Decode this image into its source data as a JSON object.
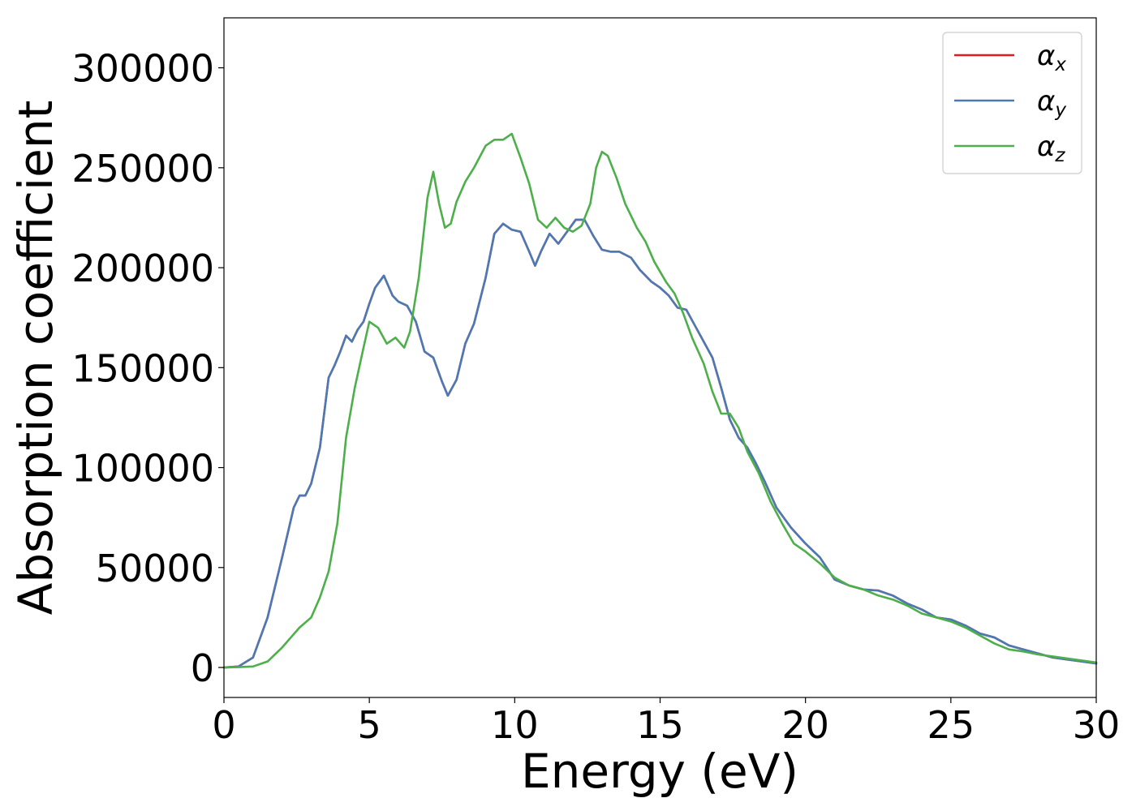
{
  "chart_data": {
    "type": "line",
    "title": "",
    "xlabel": "Energy (eV)",
    "ylabel": "Absorption coefficient",
    "xlim": [
      0,
      30
    ],
    "ylim": [
      -15000,
      325000
    ],
    "xticks": [
      0,
      5,
      10,
      15,
      20,
      25,
      30
    ],
    "yticks": [
      0,
      50000,
      100000,
      150000,
      200000,
      250000,
      300000
    ],
    "xtick_labels": [
      "0",
      "5",
      "10",
      "15",
      "20",
      "25",
      "30"
    ],
    "ytick_labels": [
      "0",
      "50000",
      "100000",
      "150000",
      "200000",
      "250000",
      "300000"
    ],
    "grid": false,
    "legend_position": "top-right",
    "series": [
      {
        "name": "αx",
        "label_base": "α",
        "label_sub": "x",
        "color": "#e41a1c",
        "x": [
          0,
          0.5,
          1.0,
          1.5,
          2.0,
          2.4,
          2.6,
          2.8,
          3.0,
          3.3,
          3.6,
          3.8,
          4.0,
          4.2,
          4.4,
          4.6,
          4.8,
          5.0,
          5.2,
          5.5,
          5.8,
          6.0,
          6.3,
          6.6,
          6.9,
          7.2,
          7.5,
          7.7,
          8.0,
          8.3,
          8.6,
          9.0,
          9.3,
          9.6,
          9.9,
          10.2,
          10.5,
          10.7,
          10.9,
          11.2,
          11.5,
          11.8,
          12.1,
          12.4,
          12.7,
          13.0,
          13.3,
          13.6,
          14.0,
          14.3,
          14.7,
          15.0,
          15.3,
          15.6,
          15.9,
          16.2,
          16.5,
          16.8,
          17.1,
          17.4,
          17.7,
          18.0,
          18.3,
          18.6,
          19.0,
          19.5,
          20.0,
          20.5,
          21.0,
          21.5,
          22.0,
          22.5,
          23.0,
          23.5,
          24.0,
          24.5,
          25.0,
          25.5,
          26.0,
          26.5,
          27.0,
          27.5,
          28.0,
          28.5,
          29.0,
          29.5,
          30.0
        ],
        "values": [
          0,
          500,
          5000,
          25000,
          55000,
          80000,
          86000,
          86000,
          92000,
          110000,
          145000,
          151000,
          158000,
          166000,
          163000,
          169000,
          173000,
          182000,
          190000,
          196000,
          186000,
          183000,
          181000,
          173000,
          158000,
          155000,
          143000,
          136000,
          144000,
          162000,
          172000,
          195000,
          217000,
          222000,
          219000,
          218000,
          208000,
          201000,
          208000,
          217000,
          212000,
          218000,
          224000,
          224000,
          216000,
          209000,
          208000,
          208000,
          205000,
          199000,
          193000,
          190000,
          186000,
          180000,
          179000,
          171000,
          163000,
          155000,
          140000,
          124000,
          115000,
          110000,
          102000,
          93000,
          80000,
          70000,
          62000,
          55000,
          44000,
          41000,
          39000,
          38500,
          36000,
          32000,
          29000,
          25000,
          24000,
          21000,
          17000,
          15000,
          11000,
          9000,
          7000,
          5000,
          4000,
          3000,
          2000
        ]
      },
      {
        "name": "αy",
        "label_base": "α",
        "label_sub": "y",
        "color": "#4a7ab5",
        "x": [
          0,
          0.5,
          1.0,
          1.5,
          2.0,
          2.4,
          2.6,
          2.8,
          3.0,
          3.3,
          3.6,
          3.8,
          4.0,
          4.2,
          4.4,
          4.6,
          4.8,
          5.0,
          5.2,
          5.5,
          5.8,
          6.0,
          6.3,
          6.6,
          6.9,
          7.2,
          7.5,
          7.7,
          8.0,
          8.3,
          8.6,
          9.0,
          9.3,
          9.6,
          9.9,
          10.2,
          10.5,
          10.7,
          10.9,
          11.2,
          11.5,
          11.8,
          12.1,
          12.4,
          12.7,
          13.0,
          13.3,
          13.6,
          14.0,
          14.3,
          14.7,
          15.0,
          15.3,
          15.6,
          15.9,
          16.2,
          16.5,
          16.8,
          17.1,
          17.4,
          17.7,
          18.0,
          18.3,
          18.6,
          19.0,
          19.5,
          20.0,
          20.5,
          21.0,
          21.5,
          22.0,
          22.5,
          23.0,
          23.5,
          24.0,
          24.5,
          25.0,
          25.5,
          26.0,
          26.5,
          27.0,
          27.5,
          28.0,
          28.5,
          29.0,
          29.5,
          30.0
        ],
        "values": [
          0,
          500,
          5000,
          25000,
          55000,
          80000,
          86000,
          86000,
          92000,
          110000,
          145000,
          151000,
          158000,
          166000,
          163000,
          169000,
          173000,
          182000,
          190000,
          196000,
          186000,
          183000,
          181000,
          173000,
          158000,
          155000,
          143000,
          136000,
          144000,
          162000,
          172000,
          195000,
          217000,
          222000,
          219000,
          218000,
          208000,
          201000,
          208000,
          217000,
          212000,
          218000,
          224000,
          224000,
          216000,
          209000,
          208000,
          208000,
          205000,
          199000,
          193000,
          190000,
          186000,
          180000,
          179000,
          171000,
          163000,
          155000,
          140000,
          124000,
          115000,
          110000,
          102000,
          93000,
          80000,
          70000,
          62000,
          55000,
          44000,
          41000,
          39000,
          38500,
          36000,
          32000,
          29000,
          25000,
          24000,
          21000,
          17000,
          15000,
          11000,
          9000,
          7000,
          5000,
          4000,
          3000,
          2000
        ]
      },
      {
        "name": "αz",
        "label_base": "α",
        "label_sub": "z",
        "color": "#4daf4a",
        "x": [
          0,
          0.5,
          1.0,
          1.5,
          2.0,
          2.3,
          2.6,
          3.0,
          3.3,
          3.6,
          3.9,
          4.2,
          4.5,
          4.8,
          5.0,
          5.3,
          5.6,
          5.9,
          6.2,
          6.4,
          6.7,
          7.0,
          7.2,
          7.4,
          7.6,
          7.8,
          8.0,
          8.3,
          8.6,
          9.0,
          9.3,
          9.6,
          9.9,
          10.2,
          10.5,
          10.8,
          11.1,
          11.4,
          11.7,
          12.0,
          12.3,
          12.6,
          12.8,
          13.0,
          13.2,
          13.5,
          13.8,
          14.2,
          14.5,
          14.8,
          15.2,
          15.5,
          15.8,
          16.1,
          16.5,
          16.8,
          17.1,
          17.4,
          17.7,
          18.0,
          18.4,
          18.8,
          19.2,
          19.6,
          20.0,
          20.5,
          21.0,
          21.5,
          22.0,
          22.5,
          23.0,
          23.5,
          24.0,
          24.5,
          25.0,
          25.5,
          26.0,
          26.5,
          27.0,
          27.5,
          28.0,
          28.5,
          29.0,
          29.5,
          30.0
        ],
        "values": [
          0,
          200,
          500,
          3000,
          10000,
          15000,
          20000,
          25000,
          35000,
          48000,
          72000,
          115000,
          140000,
          160000,
          173000,
          170000,
          162000,
          165000,
          160000,
          168000,
          195000,
          235000,
          248000,
          232000,
          220000,
          222000,
          233000,
          243000,
          250000,
          261000,
          264000,
          264000,
          267000,
          255000,
          242000,
          224000,
          220000,
          225000,
          220000,
          218000,
          221000,
          232000,
          250000,
          258000,
          256000,
          245000,
          232000,
          220000,
          213000,
          203000,
          193000,
          187000,
          177000,
          165000,
          152000,
          138000,
          127000,
          127000,
          120000,
          108000,
          97000,
          83000,
          72000,
          62000,
          58000,
          52000,
          45000,
          41000,
          39000,
          36000,
          34000,
          31000,
          27000,
          25000,
          23000,
          20000,
          16000,
          12000,
          9000,
          8000,
          6500,
          5500,
          4500,
          3500,
          2500
        ]
      }
    ]
  }
}
